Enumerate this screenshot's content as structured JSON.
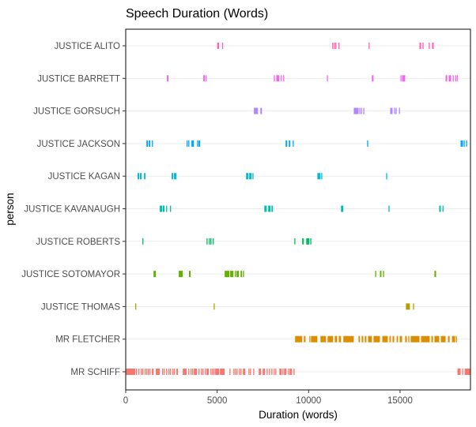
{
  "chart_data": {
    "type": "strip",
    "title": "Speech Duration (Words)",
    "xlabel": "Duration (words)",
    "ylabel": "person",
    "xlim": [
      0,
      18850
    ],
    "xticks": [
      0,
      5000,
      10000,
      15000
    ],
    "xtick_labels": [
      "0",
      "5000",
      "10000",
      "15000"
    ],
    "grid": "horizontal major",
    "legend": "none",
    "series": [
      {
        "name": "JUSTICE ALITO",
        "color": "#FF63B6",
        "segments": [
          [
            5000,
            5100
          ],
          [
            5270,
            5270
          ],
          [
            11290,
            11290
          ],
          [
            11380,
            11380
          ],
          [
            11460,
            11460
          ],
          [
            11630,
            11630
          ],
          [
            13280,
            13280
          ],
          [
            16060,
            16150
          ],
          [
            16230,
            16230
          ],
          [
            16570,
            16570
          ],
          [
            16750,
            16840
          ]
        ]
      },
      {
        "name": "JUSTICE BARRETT",
        "color": "#EF67EB",
        "segments": [
          [
            2250,
            2340
          ],
          [
            4240,
            4330
          ],
          [
            4370,
            4370
          ],
          [
            8100,
            8100
          ],
          [
            8230,
            8400
          ],
          [
            8480,
            8480
          ],
          [
            8610,
            8610
          ],
          [
            11000,
            11000
          ],
          [
            13460,
            13550
          ],
          [
            15020,
            15020
          ],
          [
            15110,
            15280
          ],
          [
            17490,
            17580
          ],
          [
            17660,
            17790
          ],
          [
            17880,
            17880
          ],
          [
            18010,
            18010
          ],
          [
            18100,
            18100
          ]
        ]
      },
      {
        "name": "JUSTICE GORSUCH",
        "color": "#B385FF",
        "segments": [
          [
            7010,
            7230
          ],
          [
            7360,
            7450
          ],
          [
            12470,
            12730
          ],
          [
            12770,
            12770
          ],
          [
            12860,
            12860
          ],
          [
            12990,
            12990
          ],
          [
            14460,
            14590
          ],
          [
            14680,
            14680
          ],
          [
            14760,
            14760
          ],
          [
            14940,
            14940
          ]
        ]
      },
      {
        "name": "JUSTICE JACKSON",
        "color": "#00A6FF",
        "segments": [
          [
            1130,
            1210
          ],
          [
            1260,
            1340
          ],
          [
            1430,
            1430
          ],
          [
            3330,
            3330
          ],
          [
            3420,
            3420
          ],
          [
            3590,
            3720
          ],
          [
            3900,
            3940
          ],
          [
            3980,
            4070
          ],
          [
            8740,
            8830
          ],
          [
            8920,
            9000
          ],
          [
            9130,
            9130
          ],
          [
            13200,
            13200
          ],
          [
            18310,
            18440
          ],
          [
            18480,
            18530
          ],
          [
            18610,
            18610
          ]
        ]
      },
      {
        "name": "JUSTICE KAGAN",
        "color": "#00BADE",
        "segments": [
          [
            650,
            740
          ],
          [
            780,
            870
          ],
          [
            1000,
            1080
          ],
          [
            2510,
            2600
          ],
          [
            2640,
            2770
          ],
          [
            6580,
            6710
          ],
          [
            6750,
            6880
          ],
          [
            6930,
            6930
          ],
          [
            10480,
            10650
          ],
          [
            10690,
            10690
          ],
          [
            14240,
            14240
          ]
        ]
      },
      {
        "name": "JUSTICE KAVANAUGH",
        "color": "#00C1A7",
        "segments": [
          [
            1860,
            1990
          ],
          [
            2030,
            2120
          ],
          [
            2210,
            2210
          ],
          [
            2420,
            2420
          ],
          [
            7580,
            7710
          ],
          [
            7790,
            7920
          ],
          [
            7970,
            8050
          ],
          [
            11770,
            11900
          ],
          [
            14370,
            14370
          ],
          [
            17140,
            17230
          ],
          [
            17320,
            17320
          ]
        ]
      },
      {
        "name": "JUSTICE ROBERTS",
        "color": "#00BD5C",
        "segments": [
          [
            910,
            910
          ],
          [
            4420,
            4420
          ],
          [
            4550,
            4550
          ],
          [
            4630,
            4630
          ],
          [
            4760,
            4760
          ],
          [
            9220,
            9220
          ],
          [
            9650,
            9740
          ],
          [
            9870,
            10040
          ],
          [
            10090,
            10090
          ]
        ]
      },
      {
        "name": "JUSTICE SOTOMAYOR",
        "color": "#64B200",
        "segments": [
          [
            1520,
            1650
          ],
          [
            2900,
            3120
          ],
          [
            3460,
            3550
          ],
          [
            5410,
            5670
          ],
          [
            5710,
            5890
          ],
          [
            5970,
            5970
          ],
          [
            6060,
            6190
          ],
          [
            6280,
            6360
          ],
          [
            6410,
            6410
          ],
          [
            13640,
            13640
          ],
          [
            13900,
            13980
          ],
          [
            14070,
            14070
          ],
          [
            16880,
            16970
          ]
        ]
      },
      {
        "name": "JUSTICE THOMAS",
        "color": "#AEA200",
        "segments": [
          [
            520,
            520
          ],
          [
            4810,
            4810
          ],
          [
            15320,
            15540
          ],
          [
            15710,
            15710
          ]
        ]
      },
      {
        "name": "MR FLETCHER",
        "color": "#DB8E00",
        "segments": [
          [
            9260,
            9650
          ],
          [
            9740,
            9830
          ],
          [
            10040,
            10090
          ],
          [
            10130,
            10480
          ],
          [
            10650,
            10950
          ],
          [
            11040,
            11340
          ],
          [
            11430,
            11560
          ],
          [
            11650,
            11770
          ],
          [
            11900,
            12470
          ],
          [
            12730,
            12810
          ],
          [
            12900,
            12990
          ],
          [
            13070,
            13160
          ],
          [
            13250,
            13460
          ],
          [
            13550,
            13900
          ],
          [
            14030,
            14330
          ],
          [
            14420,
            14500
          ],
          [
            14590,
            14680
          ],
          [
            14810,
            14890
          ],
          [
            14980,
            15110
          ],
          [
            15280,
            15370
          ],
          [
            15450,
            15500
          ],
          [
            15580,
            16060
          ],
          [
            16150,
            16620
          ],
          [
            16710,
            16800
          ],
          [
            16880,
            17140
          ],
          [
            17230,
            17490
          ],
          [
            17620,
            17710
          ],
          [
            17840,
            18010
          ],
          [
            18050,
            18100
          ]
        ]
      },
      {
        "name": "MR SCHIFF",
        "color": "#F8766D",
        "segments": [
          [
            0,
            520
          ],
          [
            563,
            563
          ],
          [
            693,
            693
          ],
          [
            823,
            823
          ],
          [
            909,
            909
          ],
          [
            1039,
            1039
          ],
          [
            1126,
            1126
          ],
          [
            1212,
            1212
          ],
          [
            1299,
            1299
          ],
          [
            1429,
            1429
          ],
          [
            1472,
            1472
          ],
          [
            1645,
            1862
          ],
          [
            1991,
            1991
          ],
          [
            2078,
            2078
          ],
          [
            2208,
            2208
          ],
          [
            2338,
            2338
          ],
          [
            2424,
            2424
          ],
          [
            2554,
            2554
          ],
          [
            2641,
            2641
          ],
          [
            2771,
            2857
          ],
          [
            3117,
            3333
          ],
          [
            3420,
            3420
          ],
          [
            3550,
            3550
          ],
          [
            3636,
            3636
          ],
          [
            3723,
            3896
          ],
          [
            3983,
            3983
          ],
          [
            4113,
            4113
          ],
          [
            4199,
            4199
          ],
          [
            4329,
            4329
          ],
          [
            4416,
            4546
          ],
          [
            4632,
            4632
          ],
          [
            4719,
            4719
          ],
          [
            4805,
            4805
          ],
          [
            4892,
            5108
          ],
          [
            5152,
            5411
          ],
          [
            5671,
            5671
          ],
          [
            5888,
            5888
          ],
          [
            5974,
            5974
          ],
          [
            6061,
            6061
          ],
          [
            6191,
            6191
          ],
          [
            6277,
            6277
          ],
          [
            6407,
            6537
          ],
          [
            6710,
            6710
          ],
          [
            6797,
            6797
          ],
          [
            6970,
            6970
          ],
          [
            7273,
            7403
          ],
          [
            7489,
            7619
          ],
          [
            7706,
            7706
          ],
          [
            7836,
            7836
          ],
          [
            7965,
            7965
          ],
          [
            8095,
            8095
          ],
          [
            8182,
            8182
          ],
          [
            8398,
            8528
          ],
          [
            8571,
            8571
          ],
          [
            8658,
            8788
          ],
          [
            8874,
            8874
          ],
          [
            8961,
            9091
          ],
          [
            9177,
            9221
          ],
          [
            18140,
            18310
          ],
          [
            18400,
            18440
          ],
          [
            18530,
            18830
          ]
        ]
      }
    ]
  }
}
